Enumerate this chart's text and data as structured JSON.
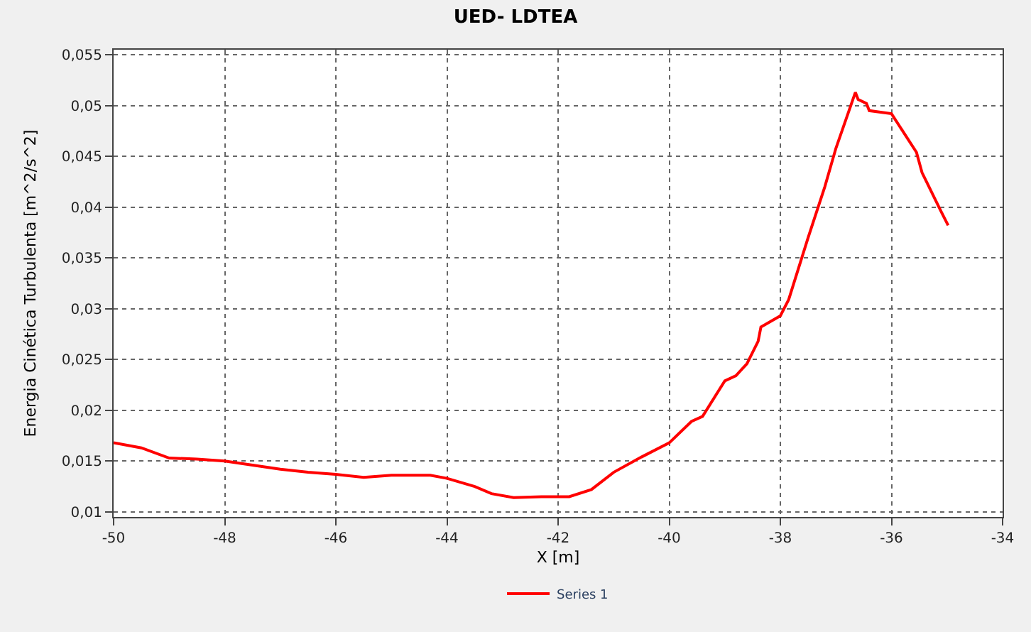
{
  "chart_data": {
    "type": "line",
    "title": "UED- LDTEA",
    "xlabel": "X [m]",
    "ylabel": "Energia Cinética Turbulenta [m^2/s^2]",
    "xlim": [
      -50,
      -34
    ],
    "xticks": [
      -50,
      -48,
      -46,
      -44,
      -42,
      -40,
      -38,
      -36,
      -34
    ],
    "ylim": [
      0.0095,
      0.0555
    ],
    "yticks": [
      {
        "value": 0.01,
        "label": "0,01"
      },
      {
        "value": 0.015,
        "label": "0,015"
      },
      {
        "value": 0.02,
        "label": "0,02"
      },
      {
        "value": 0.025,
        "label": "0,025"
      },
      {
        "value": 0.03,
        "label": "0,03"
      },
      {
        "value": 0.035,
        "label": "0,035"
      },
      {
        "value": 0.04,
        "label": "0,04"
      },
      {
        "value": 0.045,
        "label": "0,045"
      },
      {
        "value": 0.05,
        "label": "0,05"
      },
      {
        "value": 0.055,
        "label": "0,055"
      }
    ],
    "grid": true,
    "legend": "bottom",
    "marker": "none",
    "line_style": "solid",
    "x": [
      -50,
      -49.5,
      -49,
      -48.5,
      -48,
      -47,
      -46.5,
      -46,
      -45.5,
      -45,
      -44.3,
      -44,
      -43.5,
      -43.2,
      -42.8,
      -42.3,
      -42,
      -41.8,
      -41.4,
      -41,
      -40.5,
      -40,
      -39.6,
      -39.4,
      -39,
      -38.8,
      -38.6,
      -38.4,
      -38.35,
      -38,
      -37.85,
      -37.5,
      -37.2,
      -37,
      -36.65,
      -36.6,
      -36.45,
      -36.4,
      -36,
      -35.55,
      -35.45,
      -35.1,
      -34.98
    ],
    "series": [
      {
        "name": "Series 1",
        "color": "#ff0000",
        "values": [
          0.0168,
          0.0163,
          0.0153,
          0.0152,
          0.015,
          0.0142,
          0.0139,
          0.0137,
          0.0134,
          0.0136,
          0.0136,
          0.0133,
          0.0125,
          0.0118,
          0.0114,
          0.0115,
          0.0115,
          0.0115,
          0.0122,
          0.0139,
          0.0154,
          0.0168,
          0.0189,
          0.0194,
          0.0229,
          0.0234,
          0.0246,
          0.0268,
          0.0282,
          0.0293,
          0.0309,
          0.037,
          0.042,
          0.0458,
          0.0513,
          0.0506,
          0.0502,
          0.0495,
          0.0492,
          0.0454,
          0.0434,
          0.0395,
          0.0382
        ]
      }
    ]
  }
}
